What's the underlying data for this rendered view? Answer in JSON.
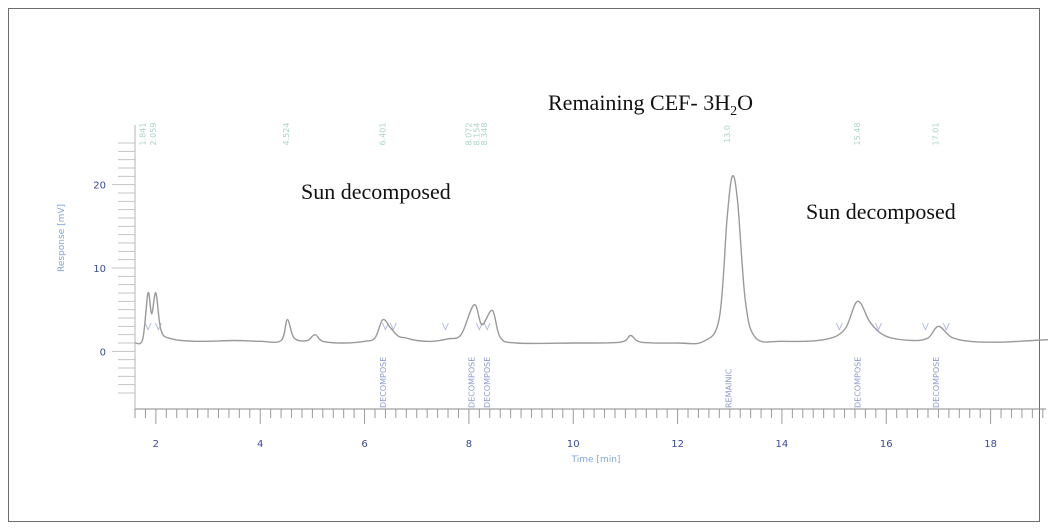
{
  "chart_data": {
    "type": "line",
    "xlabel": "Time [min]",
    "ylabel": "Response [mV]",
    "xlim": [
      1.6,
      19.1
    ],
    "ylim": [
      -5,
      25
    ],
    "x_ticks": [
      2,
      4,
      6,
      8,
      10,
      12,
      14,
      16,
      18
    ],
    "y_ticks": [
      0,
      10,
      20
    ],
    "series": [
      {
        "points": [
          [
            1.6,
            1.0
          ],
          [
            1.75,
            1.5
          ],
          [
            1.85,
            7.0
          ],
          [
            1.92,
            4.5
          ],
          [
            2.0,
            7.0
          ],
          [
            2.1,
            2.5
          ],
          [
            2.3,
            1.5
          ],
          [
            2.8,
            1.2
          ],
          [
            3.5,
            1.3
          ],
          [
            4.0,
            1.2
          ],
          [
            4.4,
            1.3
          ],
          [
            4.52,
            3.8
          ],
          [
            4.65,
            1.6
          ],
          [
            4.9,
            1.3
          ],
          [
            5.05,
            2.0
          ],
          [
            5.2,
            1.2
          ],
          [
            5.6,
            1.0
          ],
          [
            6.0,
            1.2
          ],
          [
            6.2,
            1.6
          ],
          [
            6.35,
            3.8
          ],
          [
            6.5,
            2.8
          ],
          [
            6.65,
            1.8
          ],
          [
            6.8,
            1.6
          ],
          [
            7.0,
            1.3
          ],
          [
            7.3,
            1.2
          ],
          [
            7.6,
            1.5
          ],
          [
            7.85,
            2.0
          ],
          [
            8.1,
            5.6
          ],
          [
            8.25,
            3.2
          ],
          [
            8.45,
            4.9
          ],
          [
            8.6,
            1.7
          ],
          [
            8.9,
            1.0
          ],
          [
            10.0,
            1.0
          ],
          [
            10.9,
            1.1
          ],
          [
            11.1,
            1.9
          ],
          [
            11.3,
            1.1
          ],
          [
            12.0,
            1.0
          ],
          [
            12.5,
            1.2
          ],
          [
            12.8,
            4.0
          ],
          [
            12.95,
            16.0
          ],
          [
            13.05,
            21.0
          ],
          [
            13.15,
            18.0
          ],
          [
            13.3,
            6.0
          ],
          [
            13.5,
            1.6
          ],
          [
            14.0,
            1.2
          ],
          [
            14.8,
            1.4
          ],
          [
            15.2,
            2.6
          ],
          [
            15.45,
            6.0
          ],
          [
            15.7,
            3.4
          ],
          [
            16.0,
            1.8
          ],
          [
            16.5,
            1.3
          ],
          [
            16.8,
            1.6
          ],
          [
            17.0,
            3.0
          ],
          [
            17.25,
            1.7
          ],
          [
            17.6,
            1.2
          ],
          [
            18.2,
            1.1
          ],
          [
            18.8,
            1.3
          ],
          [
            19.1,
            1.4
          ]
        ]
      }
    ],
    "peak_markers": [
      1.85,
      2.05,
      6.4,
      6.55,
      7.55,
      8.2,
      8.35,
      15.1,
      15.85,
      16.75,
      17.15
    ],
    "peak_labels": [
      {
        "x": 6.35,
        "text": "DECOMPOSE"
      },
      {
        "x": 8.05,
        "text": "DECOMPOSE"
      },
      {
        "x": 8.35,
        "text": "DECOMPOSE"
      },
      {
        "x": 12.98,
        "text": "REMAINIC"
      },
      {
        "x": 15.45,
        "text": "DECOMPOSE"
      },
      {
        "x": 16.95,
        "text": "DECOMPOSE"
      }
    ],
    "retention_labels": [
      {
        "x": 1.8,
        "text": "1.841"
      },
      {
        "x": 2.0,
        "text": "2.059"
      },
      {
        "x": 4.55,
        "text": "4.524"
      },
      {
        "x": 6.4,
        "text": "6.401"
      },
      {
        "x": 8.05,
        "text": "8.072"
      },
      {
        "x": 8.2,
        "text": "8.154"
      },
      {
        "x": 8.35,
        "text": "8.348"
      },
      {
        "x": 13.0,
        "text": "13.0"
      },
      {
        "x": 15.5,
        "text": "15.48"
      },
      {
        "x": 17.0,
        "text": "17.01"
      }
    ],
    "annotations": [
      {
        "text": "Remaining CEF- 3H",
        "sub": "2",
        "tail": "O"
      },
      {
        "text": "Sun decomposed"
      },
      {
        "text": "Sun decomposed"
      }
    ]
  }
}
